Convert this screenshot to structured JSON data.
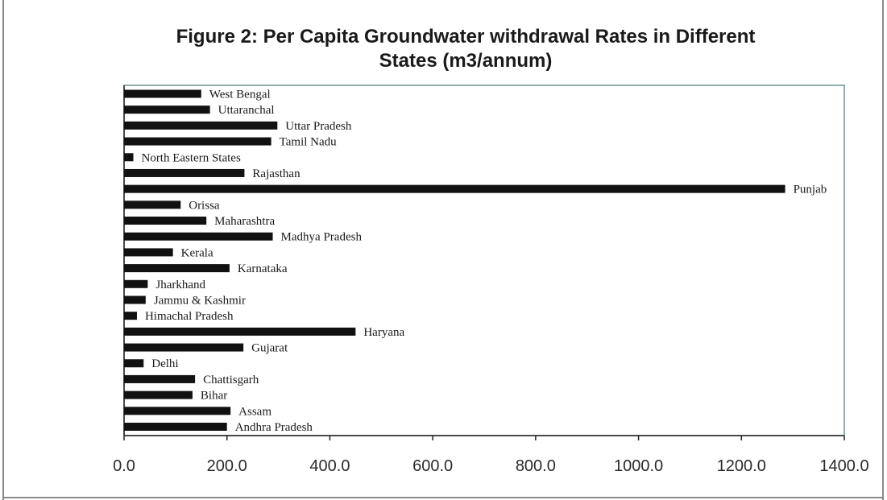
{
  "chart_data": {
    "type": "bar",
    "orientation": "horizontal",
    "title": "Figure 2: Per Capita Groundwater withdrawal Rates in Different States (m3/annum)",
    "title_lines": [
      "Figure 2: Per Capita Groundwater withdrawal Rates in Different",
      "States (m3/annum)"
    ],
    "xlabel": "",
    "ylabel": "",
    "xlim": [
      0,
      1400
    ],
    "xticks": [
      "0.0",
      "200.0",
      "400.0",
      "600.0",
      "800.0",
      "1000.0",
      "1200.0",
      "1400.0"
    ],
    "grid": false,
    "legend": "none",
    "bar_color": "#111111",
    "categories": [
      "West Bengal",
      "Uttaranchal",
      "Uttar Pradesh",
      "Tamil Nadu",
      "North Eastern States",
      "Rajasthan",
      "Punjab",
      "Orissa",
      "Maharashtra",
      "Madhya Pradesh",
      "Kerala",
      "Karnataka",
      "Jharkhand",
      "Jammu & Kashmir",
      "Himachal Pradesh",
      "Haryana",
      "Gujarat",
      "Delhi",
      "Chattisgarh",
      "Bihar",
      "Assam",
      "Andhra Pradesh"
    ],
    "values": [
      150,
      167,
      298,
      286,
      18,
      234,
      1285,
      110,
      160,
      289,
      95,
      205,
      46,
      42,
      25,
      450,
      232,
      38,
      138,
      133,
      207,
      200
    ]
  }
}
